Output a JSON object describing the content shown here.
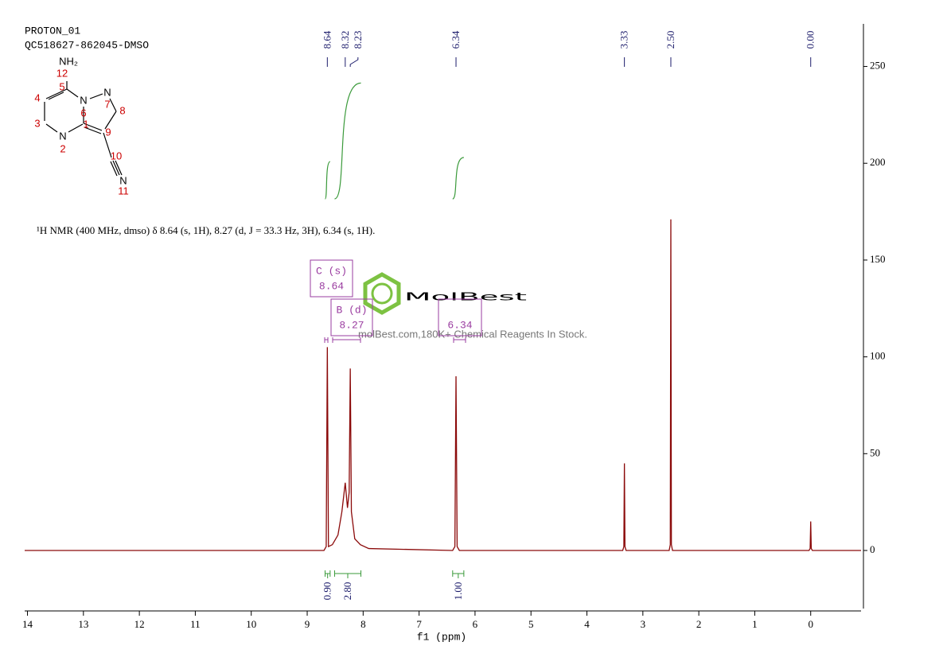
{
  "header": {
    "title": "PROTON_01",
    "sample": "QC518627-862045-DMSO"
  },
  "molecule": {
    "labels": [
      "NH₂",
      "12",
      "5",
      "N",
      "N",
      "7",
      "8",
      "4",
      "3",
      "N",
      "2",
      "6",
      "1",
      "9",
      "10",
      "N",
      "11"
    ]
  },
  "watermark": {
    "brand": "MolBest",
    "text": "molBest.com,180K+ Chemical Reagents In Stock."
  },
  "chart_data": {
    "type": "nmr",
    "description": "¹H NMR (400 MHz, dmso) δ 8.64 (s, 1H), 8.27 (d, J = 33.3 Hz, 3H), 6.34 (s, 1H).",
    "xlabel": "f1 (ppm)",
    "color": "#8b0a0a",
    "x": [
      14.05,
      8.7,
      8.66,
      8.64,
      8.62,
      8.55,
      8.45,
      8.38,
      8.32,
      8.28,
      8.25,
      8.23,
      8.21,
      8.15,
      8.05,
      7.9,
      6.4,
      6.36,
      6.34,
      6.32,
      6.28,
      3.36,
      3.34,
      3.33,
      3.32,
      3.3,
      2.53,
      2.51,
      2.5,
      2.49,
      2.47,
      0.03,
      0.01,
      0.0,
      -0.01,
      -0.03,
      -0.9
    ],
    "values": [
      0,
      0,
      2,
      105,
      2,
      3,
      8,
      20,
      35,
      22,
      30,
      94,
      20,
      6,
      3,
      1,
      0,
      2,
      90,
      2,
      0,
      0,
      2,
      45,
      2,
      0,
      0,
      3,
      171,
      3,
      0,
      0,
      1,
      15,
      1,
      0,
      0
    ],
    "xlim": [
      14.05,
      -0.9
    ],
    "xticks": [
      14,
      13,
      12,
      11,
      10,
      9,
      8,
      7,
      6,
      5,
      4,
      3,
      2,
      1,
      0
    ],
    "ylim": [
      -30,
      272
    ],
    "yticks": [
      0,
      50,
      100,
      150,
      200,
      250
    ],
    "peaks": [
      {
        "value": 8.64,
        "label": "8.64"
      },
      {
        "value": 8.32,
        "label": "8.32"
      },
      {
        "value": 8.23,
        "label": "8.23"
      },
      {
        "value": 6.34,
        "label": "6.34"
      },
      {
        "value": 3.33,
        "label": "3.33"
      },
      {
        "value": 2.5,
        "label": "2.50"
      },
      {
        "value": 0,
        "label": "0.00"
      }
    ],
    "integrals": [
      {
        "range": [
          8.68,
          8.59
        ],
        "value": 0.9,
        "label": "0.90"
      },
      {
        "range": [
          8.51,
          8.04
        ],
        "value": 2.8,
        "label": "2.80"
      },
      {
        "range": [
          6.4,
          6.2
        ],
        "value": 1,
        "label": "1.00"
      }
    ],
    "multiplets": [
      {
        "label": "C (s)",
        "shift": "8.64"
      },
      {
        "label": "B (d)",
        "shift": "8.27"
      },
      {
        "shift": "6.34"
      }
    ]
  }
}
